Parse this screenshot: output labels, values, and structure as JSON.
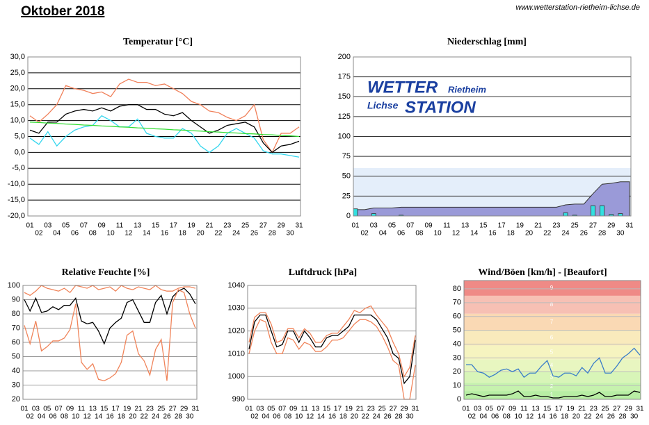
{
  "title": "Oktober 2018",
  "source": "www.wetterstation-rietheim-lichse.de",
  "chart_data": [
    {
      "type": "line",
      "title": "Temperatur [°C]",
      "categories": [
        "01",
        "02",
        "03",
        "04",
        "05",
        "06",
        "07",
        "08",
        "09",
        "10",
        "11",
        "12",
        "13",
        "14",
        "15",
        "16",
        "17",
        "18",
        "19",
        "20",
        "21",
        "22",
        "23",
        "24",
        "25",
        "26",
        "27",
        "28",
        "29",
        "30",
        "31"
      ],
      "ylim": [
        -20,
        30
      ],
      "yticks": [
        {
          "value": -20,
          "label": "-20,0"
        },
        {
          "value": -15,
          "label": "-15,0"
        },
        {
          "value": -10,
          "label": "-10,0"
        },
        {
          "value": -5,
          "label": "-5,0"
        },
        {
          "value": 0,
          "label": "0,0"
        },
        {
          "value": 5,
          "label": "5,0"
        },
        {
          "value": 10,
          "label": "10,0"
        },
        {
          "value": 15,
          "label": "15,0"
        },
        {
          "value": 20,
          "label": "20,0"
        },
        {
          "value": 25,
          "label": "25,0"
        },
        {
          "value": 30,
          "label": "30,0"
        }
      ],
      "grid": true,
      "series": [
        {
          "type": "line",
          "color": "#f0805a",
          "values": [
            11.5,
            9.5,
            12,
            15,
            21,
            20,
            19.5,
            18.5,
            19,
            17.5,
            21.5,
            23,
            22,
            22,
            21,
            21.5,
            20,
            18.5,
            16,
            15,
            13,
            12.5,
            11,
            10,
            11.5,
            15,
            4,
            0,
            6,
            6,
            8
          ]
        },
        {
          "type": "line",
          "color": "#000000",
          "values": [
            7,
            6,
            9.5,
            9.5,
            12,
            13,
            13.5,
            13,
            14,
            13,
            14.5,
            15,
            15,
            13.5,
            13.5,
            12,
            11.5,
            12.5,
            10,
            8,
            6,
            7,
            8.5,
            9,
            9.5,
            8,
            3,
            0,
            2,
            2.5,
            3.5
          ]
        },
        {
          "type": "line",
          "color": "#33d6ee",
          "values": [
            4.5,
            2.5,
            6.5,
            2,
            5,
            7,
            8,
            8.5,
            11.5,
            10,
            8,
            8,
            10.5,
            6,
            5,
            4.5,
            4.5,
            7.5,
            6,
            2,
            0,
            2,
            6,
            7.5,
            6,
            4.5,
            0.5,
            -0.5,
            -0.5,
            -1,
            -1.5
          ]
        },
        {
          "type": "line",
          "color": "#33dd33",
          "values": [
            9.5,
            9.4,
            9.2,
            9.1,
            8.9,
            8.8,
            8.6,
            8.5,
            8.3,
            8.2,
            8.0,
            7.9,
            7.7,
            7.6,
            7.4,
            7.3,
            7.1,
            7.0,
            6.8,
            6.7,
            6.5,
            6.4,
            6.2,
            6.1,
            5.9,
            5.8,
            5.6,
            5.5,
            5.3,
            5.2,
            5.0
          ]
        }
      ]
    },
    {
      "type": "bar",
      "title": "Niederschlag [mm]",
      "categories": [
        "01",
        "02",
        "03",
        "04",
        "05",
        "06",
        "07",
        "08",
        "09",
        "10",
        "11",
        "12",
        "13",
        "14",
        "15",
        "16",
        "17",
        "18",
        "19",
        "20",
        "21",
        "22",
        "23",
        "24",
        "25",
        "26",
        "27",
        "28",
        "29",
        "30",
        "31"
      ],
      "ylim": [
        0,
        200
      ],
      "yticks": [
        0,
        25,
        50,
        75,
        100,
        125,
        150,
        175,
        200
      ],
      "grid": true,
      "logo": [
        "WETTER",
        "Rietheim",
        "Lichse",
        "STATION"
      ],
      "series": [
        {
          "type": "area",
          "color": "#9a9ad8",
          "values": [
            8,
            8,
            10,
            10,
            10,
            11,
            11,
            11,
            11,
            11,
            11,
            11,
            11,
            11,
            11,
            11,
            11,
            11,
            11,
            11,
            11,
            11,
            11,
            14,
            15,
            15,
            28,
            40,
            41,
            43,
            43
          ]
        },
        {
          "type": "bar",
          "color": "#33e0e0",
          "values": [
            9,
            0,
            3,
            0,
            0,
            1,
            0,
            0,
            0,
            0,
            0,
            0,
            0,
            0,
            0,
            0,
            0,
            0,
            0,
            0,
            0,
            0,
            0,
            4,
            1,
            0,
            13,
            13,
            2,
            3,
            0
          ]
        }
      ]
    },
    {
      "type": "line",
      "title": "Relative Feuchte [%]",
      "categories": [
        "01",
        "02",
        "03",
        "04",
        "05",
        "06",
        "07",
        "08",
        "09",
        "10",
        "11",
        "12",
        "13",
        "14",
        "15",
        "16",
        "17",
        "18",
        "19",
        "20",
        "21",
        "22",
        "23",
        "24",
        "25",
        "26",
        "27",
        "28",
        "29",
        "30",
        "31"
      ],
      "ylim": [
        20,
        100
      ],
      "yticks": [
        20,
        30,
        40,
        50,
        60,
        70,
        80,
        90,
        100
      ],
      "grid": true,
      "series": [
        {
          "type": "line",
          "color": "#f0845a",
          "values": [
            95,
            93,
            96,
            100,
            98,
            97,
            96,
            98,
            95,
            100,
            99,
            98,
            100,
            97,
            98,
            99,
            96,
            100,
            98,
            97,
            99,
            98,
            97,
            100,
            97,
            96,
            96,
            98,
            99,
            99,
            98
          ]
        },
        {
          "type": "line",
          "color": "#000000",
          "values": [
            90,
            82,
            91,
            81,
            82,
            85,
            83,
            86,
            86,
            91,
            75,
            73,
            74,
            68,
            59,
            70,
            74,
            77,
            88,
            90,
            82,
            74,
            74,
            88,
            93,
            80,
            92,
            96,
            98,
            94,
            87
          ]
        },
        {
          "type": "line",
          "color": "#f0845a",
          "values": [
            72,
            59,
            75,
            54,
            57,
            61,
            61,
            63,
            69,
            87,
            46,
            41,
            45,
            34,
            33,
            35,
            38,
            46,
            65,
            68,
            52,
            47,
            37,
            55,
            62,
            33,
            88,
            97,
            95,
            80,
            70
          ]
        }
      ]
    },
    {
      "type": "line",
      "title": "Luftdruck [hPa]",
      "categories": [
        "01",
        "02",
        "03",
        "04",
        "05",
        "06",
        "07",
        "08",
        "09",
        "10",
        "11",
        "12",
        "13",
        "14",
        "15",
        "16",
        "17",
        "18",
        "19",
        "20",
        "21",
        "22",
        "23",
        "24",
        "25",
        "26",
        "27",
        "28",
        "29",
        "30",
        "31"
      ],
      "ylim": [
        990,
        1040
      ],
      "yticks": [
        990,
        1000,
        1010,
        1020,
        1030,
        1040
      ],
      "grid": true,
      "series": [
        {
          "type": "line",
          "color": "#f0845a",
          "values": [
            1015,
            1026,
            1028,
            1028,
            1023,
            1015,
            1016,
            1021,
            1021,
            1017,
            1021,
            1019,
            1015,
            1015,
            1018,
            1019,
            1019,
            1022,
            1025,
            1029,
            1028,
            1030,
            1031,
            1027,
            1024,
            1021,
            1015,
            1010,
            1000,
            1004,
            1018
          ]
        },
        {
          "type": "line",
          "color": "#000000",
          "values": [
            1012,
            1024,
            1027,
            1027,
            1020,
            1013,
            1014,
            1020,
            1020,
            1015,
            1020,
            1017,
            1013,
            1013,
            1017,
            1018,
            1018,
            1020,
            1022,
            1027,
            1027,
            1027,
            1027,
            1025,
            1021,
            1017,
            1010,
            1008,
            997,
            1000,
            1016
          ]
        },
        {
          "type": "line",
          "color": "#f0845a",
          "values": [
            1010,
            1020,
            1025,
            1024,
            1015,
            1010,
            1010,
            1017,
            1016,
            1012,
            1015,
            1014,
            1011,
            1011,
            1013,
            1016,
            1016,
            1017,
            1020,
            1023,
            1025,
            1025,
            1024,
            1022,
            1018,
            1013,
            1007,
            1005,
            990,
            990,
            1005
          ]
        }
      ]
    },
    {
      "type": "line",
      "title": "Wind/Böen [km/h] - [Beaufort]",
      "categories": [
        "01",
        "02",
        "03",
        "04",
        "05",
        "06",
        "07",
        "08",
        "09",
        "10",
        "11",
        "12",
        "13",
        "14",
        "15",
        "16",
        "17",
        "18",
        "19",
        "20",
        "21",
        "22",
        "23",
        "24",
        "25",
        "26",
        "27",
        "28",
        "29",
        "30",
        "31"
      ],
      "ylim": [
        0,
        86
      ],
      "yticks": [
        0,
        10,
        20,
        30,
        40,
        50,
        60,
        70,
        80
      ],
      "grid": true,
      "bands": [
        {
          "name": "1",
          "from": 0,
          "to": 6,
          "color": "#b8eea4"
        },
        {
          "name": "2",
          "from": 6,
          "to": 12,
          "color": "#c6f2ae"
        },
        {
          "name": "3",
          "from": 12,
          "to": 20,
          "color": "#d8f5b8"
        },
        {
          "name": "4",
          "from": 20,
          "to": 29,
          "color": "#e8f6c0"
        },
        {
          "name": "5",
          "from": 29,
          "to": 39,
          "color": "#f6f4c0"
        },
        {
          "name": "6",
          "from": 39,
          "to": 50,
          "color": "#f9eabc"
        },
        {
          "name": "7",
          "from": 50,
          "to": 62,
          "color": "#fad9b4"
        },
        {
          "name": "8",
          "from": 62,
          "to": 75,
          "color": "#f7c0b4"
        },
        {
          "name": "9",
          "from": 75,
          "to": 86,
          "color": "#ef8a86"
        }
      ],
      "series": [
        {
          "type": "line",
          "color": "#3a7dc9",
          "values": [
            25,
            25,
            20,
            19,
            16,
            18,
            21,
            22,
            20,
            22,
            16,
            19,
            19,
            24,
            28,
            17,
            16,
            19,
            19,
            17,
            23,
            19,
            26,
            30,
            19,
            19,
            24,
            30,
            33,
            37,
            32
          ]
        },
        {
          "type": "line",
          "color": "#000000",
          "values": [
            3,
            4,
            3,
            2,
            3,
            3,
            3,
            3,
            4,
            6,
            2,
            2,
            3,
            2,
            2,
            1,
            1,
            2,
            2,
            2,
            3,
            2,
            3,
            5,
            2,
            2,
            3,
            3,
            3,
            6,
            5
          ]
        }
      ]
    }
  ]
}
